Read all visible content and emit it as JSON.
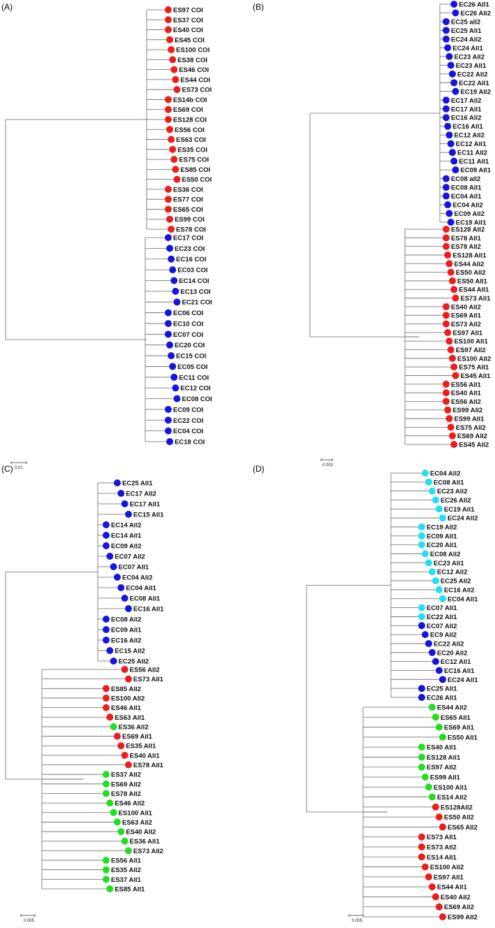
{
  "colors": {
    "red": "#ee1c1c",
    "blue": "#1515dd",
    "green": "#22dd22",
    "cyan": "#22e0ee"
  },
  "panels": [
    {
      "label": "(A)",
      "scale": "0.01",
      "clades": [
        {
          "tips": [
            {
              "name": "ES97 COI",
              "c": "red"
            },
            {
              "name": "ES37 COI",
              "c": "red"
            },
            {
              "name": "ES40 COI",
              "c": "red"
            },
            {
              "name": "ES45 COI",
              "c": "red"
            },
            {
              "name": "ES100 COI",
              "c": "red"
            },
            {
              "name": "ES38 COI",
              "c": "red"
            },
            {
              "name": "ES46 COI",
              "c": "red"
            },
            {
              "name": "ES44 COI",
              "c": "red"
            },
            {
              "name": "ES73 COI",
              "c": "red"
            },
            {
              "name": "ES14b COI",
              "c": "red"
            },
            {
              "name": "ES69 COI",
              "c": "red"
            },
            {
              "name": "ES128 COI",
              "c": "red"
            },
            {
              "name": "ES56 COI",
              "c": "red"
            },
            {
              "name": "ES63 COI",
              "c": "red"
            },
            {
              "name": "ES35 COI",
              "c": "red"
            },
            {
              "name": "ES75 COI",
              "c": "red"
            },
            {
              "name": "ES85 COI",
              "c": "red"
            },
            {
              "name": "ES50 COI",
              "c": "red"
            },
            {
              "name": "ES36 COI",
              "c": "red"
            },
            {
              "name": "ES77 COI",
              "c": "red"
            },
            {
              "name": "ES65 COI",
              "c": "red"
            },
            {
              "name": "ES99 COI",
              "c": "red"
            },
            {
              "name": "ES78 COI",
              "c": "red"
            }
          ]
        },
        {
          "tips": [
            {
              "name": "EC17 COI",
              "c": "blue"
            },
            {
              "name": "EC23 COI",
              "c": "blue"
            },
            {
              "name": "EC16 COI",
              "c": "blue"
            },
            {
              "name": "EC03 COI",
              "c": "blue"
            },
            {
              "name": "EC14 COI",
              "c": "blue"
            },
            {
              "name": "EC13 COI",
              "c": "blue"
            },
            {
              "name": "EC21 COI",
              "c": "blue"
            },
            {
              "name": "EC06 COI",
              "c": "blue"
            },
            {
              "name": "EC10 COI",
              "c": "blue"
            },
            {
              "name": "EC07 COI",
              "c": "blue"
            },
            {
              "name": "EC20 COI",
              "c": "blue"
            },
            {
              "name": "EC15 COI",
              "c": "blue"
            },
            {
              "name": "EC05 COI",
              "c": "blue"
            },
            {
              "name": "EC11 COI",
              "c": "blue"
            },
            {
              "name": "EC12 COI",
              "c": "blue"
            },
            {
              "name": "EC08 COI",
              "c": "blue"
            },
            {
              "name": "EC09 COI",
              "c": "blue"
            },
            {
              "name": "EC22 COI",
              "c": "blue"
            },
            {
              "name": "EC04 COI",
              "c": "blue"
            },
            {
              "name": "EC18 COI",
              "c": "blue"
            }
          ]
        }
      ]
    },
    {
      "label": "(B)",
      "scale": "0.002",
      "clades": [
        {
          "tips": [
            {
              "name": "EC26 All1",
              "c": "blue"
            },
            {
              "name": "EC26 All2",
              "c": "blue"
            },
            {
              "name": "EC25 all2",
              "c": "blue"
            },
            {
              "name": "EC25 All1",
              "c": "blue"
            },
            {
              "name": "EC24 All2",
              "c": "blue"
            },
            {
              "name": "EC24 All1",
              "c": "blue"
            },
            {
              "name": "EC23 All2",
              "c": "blue"
            },
            {
              "name": "EC23 All1",
              "c": "blue"
            },
            {
              "name": "EC22 All2",
              "c": "blue"
            },
            {
              "name": "EC22 All1",
              "c": "blue"
            },
            {
              "name": "EC19 All2",
              "c": "blue"
            },
            {
              "name": "EC17 All2",
              "c": "blue"
            },
            {
              "name": "EC17 All1",
              "c": "blue"
            },
            {
              "name": "EC16 All2",
              "c": "blue"
            },
            {
              "name": "EC16 All1",
              "c": "blue"
            },
            {
              "name": "EC12 All2",
              "c": "blue"
            },
            {
              "name": "EC12 All1",
              "c": "blue"
            },
            {
              "name": "EC11 All2",
              "c": "blue"
            },
            {
              "name": "EC11 All1",
              "c": "blue"
            },
            {
              "name": "EC09 All1",
              "c": "blue"
            },
            {
              "name": "EC08 all2",
              "c": "blue"
            },
            {
              "name": "EC08 All1",
              "c": "blue"
            },
            {
              "name": "EC04 All1",
              "c": "blue"
            },
            {
              "name": "EC04 All2",
              "c": "blue"
            },
            {
              "name": "EC09 All2",
              "c": "blue"
            },
            {
              "name": "EC19 All1",
              "c": "blue"
            }
          ]
        },
        {
          "tips": [
            {
              "name": "ES128 All2",
              "c": "red"
            },
            {
              "name": "ES78 All1",
              "c": "red"
            },
            {
              "name": "ES78 All2",
              "c": "red"
            },
            {
              "name": "ES128 All1",
              "c": "red"
            },
            {
              "name": "ES44 All2",
              "c": "red"
            },
            {
              "name": "ES50 All2",
              "c": "red"
            },
            {
              "name": "ES50 All1",
              "c": "red"
            },
            {
              "name": "ES44 All1",
              "c": "red"
            },
            {
              "name": "ES73 All1",
              "c": "red"
            },
            {
              "name": "ES40 All2",
              "c": "red"
            },
            {
              "name": "ES69 All1",
              "c": "red"
            },
            {
              "name": "ES73 All2",
              "c": "red"
            },
            {
              "name": "ES97 All1",
              "c": "red"
            },
            {
              "name": "ES100 All1",
              "c": "red"
            },
            {
              "name": "ES97 All2",
              "c": "red"
            },
            {
              "name": "ES100 All2",
              "c": "red"
            },
            {
              "name": "ES75 All1",
              "c": "red"
            },
            {
              "name": "ES45 All1",
              "c": "red"
            },
            {
              "name": "ES56 All1",
              "c": "red"
            },
            {
              "name": "ES40 All1",
              "c": "red"
            },
            {
              "name": "ES56 All2",
              "c": "red"
            },
            {
              "name": "ES99 All2",
              "c": "red"
            },
            {
              "name": "ES99 All1",
              "c": "red"
            },
            {
              "name": "ES75 All2",
              "c": "red"
            },
            {
              "name": "ES69 All2",
              "c": "red"
            },
            {
              "name": "ES45 All2",
              "c": "red"
            }
          ]
        }
      ]
    },
    {
      "label": "(C)",
      "scale": "0.005",
      "clades": [
        {
          "tips": [
            {
              "name": "EC25 All1",
              "c": "blue"
            },
            {
              "name": "EC17 All2",
              "c": "blue"
            },
            {
              "name": "EC17 All1",
              "c": "blue"
            },
            {
              "name": "EC15 All1",
              "c": "blue"
            },
            {
              "name": "EC14 All2",
              "c": "blue"
            },
            {
              "name": "EC14 All1",
              "c": "blue"
            },
            {
              "name": "EC09 All2",
              "c": "blue"
            },
            {
              "name": "EC07 All2",
              "c": "blue"
            },
            {
              "name": "EC07 All1",
              "c": "blue"
            },
            {
              "name": "EC04 All2",
              "c": "blue"
            },
            {
              "name": "EC04 All1",
              "c": "blue"
            },
            {
              "name": "EC08 All1",
              "c": "blue"
            },
            {
              "name": "EC16 All1",
              "c": "blue"
            },
            {
              "name": "EC08 All2",
              "c": "blue"
            },
            {
              "name": "EC09 All1",
              "c": "blue"
            },
            {
              "name": "EC16 All2",
              "c": "blue"
            },
            {
              "name": "EC15 All2",
              "c": "blue"
            },
            {
              "name": "EC25 All2",
              "c": "blue"
            }
          ]
        },
        {
          "tips": [
            {
              "name": "ES56 All2",
              "c": "red"
            },
            {
              "name": "ES73 All1",
              "c": "red"
            },
            {
              "name": "ES85 All2",
              "c": "red"
            },
            {
              "name": "ES100 All2",
              "c": "red"
            },
            {
              "name": "ES46 All1",
              "c": "red"
            },
            {
              "name": "ES63 All1",
              "c": "red"
            },
            {
              "name": "ES36 All2",
              "c": "green"
            },
            {
              "name": "ES69 All1",
              "c": "red"
            },
            {
              "name": "ES35 All1",
              "c": "red"
            },
            {
              "name": "ES40 All1",
              "c": "red"
            },
            {
              "name": "ES78 All1",
              "c": "red"
            },
            {
              "name": "ES37 All2",
              "c": "green"
            },
            {
              "name": "ES69 All2",
              "c": "green"
            },
            {
              "name": "ES78 All2",
              "c": "green"
            },
            {
              "name": "ES46 All2",
              "c": "green"
            },
            {
              "name": "ES100 All1",
              "c": "green"
            },
            {
              "name": "ES63 All2",
              "c": "green"
            },
            {
              "name": "ES40 All2",
              "c": "green"
            },
            {
              "name": "ES36 All1",
              "c": "green"
            },
            {
              "name": "ES73 All2",
              "c": "green"
            },
            {
              "name": "ES56 All1",
              "c": "green"
            },
            {
              "name": "ES35 All2",
              "c": "green"
            },
            {
              "name": "ES37 All1",
              "c": "green"
            },
            {
              "name": "ES85 All1",
              "c": "green"
            }
          ]
        }
      ]
    },
    {
      "label": "(D)",
      "scale": "0.005",
      "clades": [
        {
          "tips": [
            {
              "name": "EC04 All2",
              "c": "cyan"
            },
            {
              "name": "EC08 All1",
              "c": "cyan"
            },
            {
              "name": "EC23 All2",
              "c": "cyan"
            },
            {
              "name": "EC26 All2",
              "c": "cyan"
            },
            {
              "name": "EC19 All1",
              "c": "cyan"
            },
            {
              "name": "EC24 All2",
              "c": "cyan"
            },
            {
              "name": "EC19 All2",
              "c": "cyan"
            },
            {
              "name": "EC09 All1",
              "c": "cyan"
            },
            {
              "name": "EC20 All1",
              "c": "cyan"
            },
            {
              "name": "EC08 All2",
              "c": "cyan"
            },
            {
              "name": "EC23 All1",
              "c": "cyan"
            },
            {
              "name": "EC12 All2",
              "c": "cyan"
            },
            {
              "name": "EC25 All2",
              "c": "cyan"
            },
            {
              "name": "EC16 All2",
              "c": "cyan"
            },
            {
              "name": "EC04 All1",
              "c": "cyan"
            },
            {
              "name": "EC07 All1",
              "c": "cyan"
            },
            {
              "name": "EC22 All1",
              "c": "cyan"
            },
            {
              "name": "EC07 All2",
              "c": "blue"
            },
            {
              "name": "EC9 All2",
              "c": "blue"
            },
            {
              "name": "EC22 All2",
              "c": "blue"
            },
            {
              "name": "EC20 All2",
              "c": "blue"
            },
            {
              "name": "EC12 All1",
              "c": "blue"
            },
            {
              "name": "EC16 All1",
              "c": "blue"
            },
            {
              "name": "EC24 All1",
              "c": "blue"
            },
            {
              "name": "EC25 All1",
              "c": "blue"
            },
            {
              "name": "EC26 All1",
              "c": "blue"
            }
          ]
        },
        {
          "tips": [
            {
              "name": "ES44 All2",
              "c": "green"
            },
            {
              "name": "ES65 All1",
              "c": "green"
            },
            {
              "name": "ES69 All1",
              "c": "green"
            },
            {
              "name": "ES50 All1",
              "c": "green"
            },
            {
              "name": "ES40 All1",
              "c": "green"
            },
            {
              "name": "ES128 All1",
              "c": "green"
            },
            {
              "name": "ES97 All2",
              "c": "green"
            },
            {
              "name": "ES99 All1",
              "c": "green"
            },
            {
              "name": "ES100 All1",
              "c": "green"
            },
            {
              "name": "ES14 All2",
              "c": "green"
            },
            {
              "name": "ES128All2",
              "c": "red"
            },
            {
              "name": "ES50 All2",
              "c": "red"
            },
            {
              "name": "ES65 All2",
              "c": "red"
            },
            {
              "name": "ES73 All1",
              "c": "red"
            },
            {
              "name": "ES73 All2",
              "c": "red"
            },
            {
              "name": "ES14 All1",
              "c": "red"
            },
            {
              "name": "ES100 All2",
              "c": "red"
            },
            {
              "name": "ES97 All1",
              "c": "red"
            },
            {
              "name": "ES44 All1",
              "c": "red"
            },
            {
              "name": "ES40 All2",
              "c": "red"
            },
            {
              "name": "ES69 All2",
              "c": "red"
            },
            {
              "name": "ES99 All2",
              "c": "red"
            }
          ]
        }
      ]
    }
  ]
}
